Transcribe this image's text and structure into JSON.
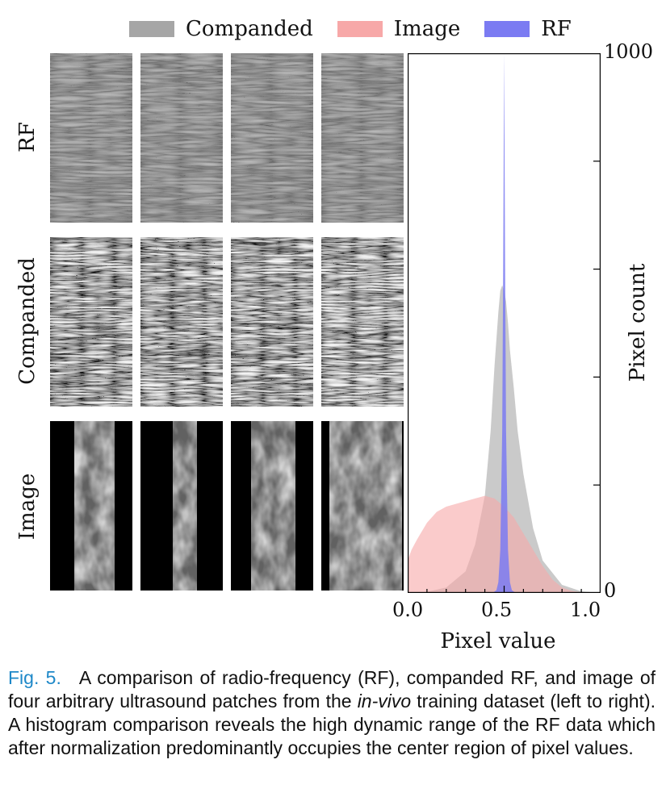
{
  "legend": [
    {
      "label": "Companded",
      "color": "#a6a6a6"
    },
    {
      "label": "Image",
      "color": "#f7a8a8"
    },
    {
      "label": "RF",
      "color": "#7b7bf2"
    }
  ],
  "rows": [
    {
      "label": "RF"
    },
    {
      "label": "Companded"
    },
    {
      "label": "Image"
    }
  ],
  "chart_data": {
    "type": "area",
    "title": "",
    "xlabel": "Pixel value",
    "ylabel": "Pixel count",
    "xlim": [
      0.0,
      1.0
    ],
    "ylim": [
      0,
      1000
    ],
    "x_ticks": [
      "0.0",
      "0.5",
      "1.0"
    ],
    "y_ticks": [
      "0",
      "1000"
    ],
    "legend_position": "top",
    "series": [
      {
        "name": "Companded",
        "color": "#a6a6a6",
        "x": [
          0.0,
          0.1,
          0.2,
          0.3,
          0.35,
          0.4,
          0.43,
          0.45,
          0.47,
          0.48,
          0.49,
          0.5,
          0.51,
          0.52,
          0.53,
          0.55,
          0.57,
          0.6,
          0.65,
          0.7,
          0.8,
          0.9,
          1.0
        ],
        "values": [
          0,
          2,
          10,
          40,
          90,
          180,
          300,
          420,
          520,
          560,
          570,
          560,
          540,
          500,
          450,
          380,
          300,
          220,
          120,
          60,
          15,
          3,
          0
        ]
      },
      {
        "name": "Image",
        "color": "#f7a8a8",
        "x": [
          0.0,
          0.02,
          0.05,
          0.1,
          0.15,
          0.2,
          0.25,
          0.3,
          0.35,
          0.4,
          0.45,
          0.5,
          0.55,
          0.6,
          0.65,
          0.7,
          0.75,
          0.8,
          0.85,
          0.9,
          1.0
        ],
        "values": [
          60,
          80,
          100,
          130,
          150,
          160,
          165,
          170,
          175,
          180,
          175,
          160,
          140,
          110,
          80,
          50,
          25,
          10,
          4,
          1,
          0
        ]
      },
      {
        "name": "RF",
        "color": "#7b7bf2",
        "x": [
          0.0,
          0.44,
          0.46,
          0.47,
          0.48,
          0.49,
          0.495,
          0.5,
          0.505,
          0.51,
          0.52,
          0.53,
          0.54,
          0.56,
          1.0
        ],
        "values": [
          0,
          0,
          5,
          20,
          80,
          300,
          600,
          1000,
          600,
          300,
          80,
          20,
          5,
          0,
          0
        ]
      }
    ]
  },
  "caption": {
    "label": "Fig. 5.",
    "text_before": "A comparison of radio-frequency (RF), companded RF, and image of four arbitrary ultrasound patches from the ",
    "emphasis": "in-vivo",
    "text_after": " training dataset (left to right). A histogram comparison reveals the high dynamic range of the RF data which after normalization predominantly occupies the center region of pixel values."
  }
}
